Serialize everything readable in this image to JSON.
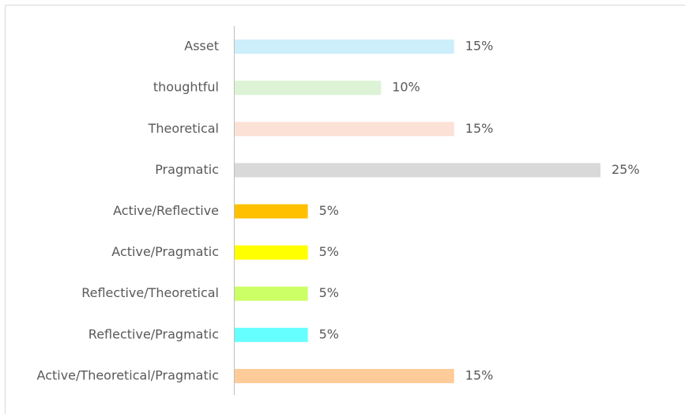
{
  "chart_data": {
    "type": "bar",
    "orientation": "horizontal",
    "categories": [
      "Asset",
      "thoughtful",
      "Theoretical",
      "Pragmatic",
      "Active/Reflective",
      "Active/Pragmatic",
      "Reflective/Theoretical",
      "Reflective/Pragmatic",
      "Active/Theoretical/Pragmatic"
    ],
    "values": [
      15,
      10,
      15,
      25,
      5,
      5,
      5,
      5,
      15
    ],
    "value_labels": [
      "15%",
      "10%",
      "15%",
      "25%",
      "5%",
      "5%",
      "5%",
      "5%",
      "15%"
    ],
    "colors": [
      "#cdeefb",
      "#dcf3d6",
      "#fce1d6",
      "#d9d9d9",
      "#ffc000",
      "#ffff00",
      "#ccff66",
      "#66ffff",
      "#ffcc99"
    ]
  }
}
